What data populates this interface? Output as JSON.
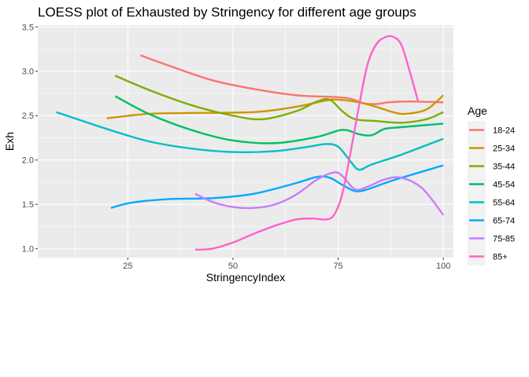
{
  "chart_data": {
    "type": "line",
    "title": "LOESS plot of Exhausted by Stringency for different age groups",
    "xlabel": "StringencyIndex",
    "ylabel": "Exh",
    "xlim": [
      3.6,
      102.4
    ],
    "ylim": [
      0.9,
      3.52
    ],
    "x_ticks": [
      25,
      50,
      75,
      100
    ],
    "y_ticks": [
      1.0,
      1.5,
      2.0,
      2.5,
      3.0,
      3.5
    ],
    "x_tick_labels": [
      "25",
      "50",
      "75",
      "100"
    ],
    "y_tick_labels": [
      "1.0",
      "1.5",
      "2.0",
      "2.5",
      "3.0",
      "3.5"
    ],
    "grid": true,
    "panel_background": "#EBEBEB",
    "legend": {
      "title": "Age",
      "position": "right"
    },
    "series": [
      {
        "name": "18-24",
        "color": "#F8766D",
        "points": [
          [
            28,
            3.18
          ],
          [
            35,
            3.06
          ],
          [
            45,
            2.9
          ],
          [
            55,
            2.8
          ],
          [
            65,
            2.73
          ],
          [
            74,
            2.71
          ],
          [
            78,
            2.69
          ],
          [
            81,
            2.64
          ],
          [
            84,
            2.63
          ],
          [
            87,
            2.65
          ],
          [
            92,
            2.66
          ],
          [
            100,
            2.65
          ]
        ]
      },
      {
        "name": "25-34",
        "color": "#CD9600",
        "points": [
          [
            20,
            2.47
          ],
          [
            30,
            2.52
          ],
          [
            40,
            2.53
          ],
          [
            55,
            2.54
          ],
          [
            65,
            2.6
          ],
          [
            72,
            2.67
          ],
          [
            75,
            2.68
          ],
          [
            80,
            2.65
          ],
          [
            84,
            2.6
          ],
          [
            88,
            2.54
          ],
          [
            91,
            2.52
          ],
          [
            96,
            2.57
          ],
          [
            100,
            2.73
          ]
        ]
      },
      {
        "name": "35-44",
        "color": "#7CAE00",
        "points": [
          [
            22,
            2.95
          ],
          [
            30,
            2.79
          ],
          [
            40,
            2.62
          ],
          [
            50,
            2.5
          ],
          [
            57,
            2.46
          ],
          [
            65,
            2.55
          ],
          [
            70,
            2.66
          ],
          [
            73,
            2.68
          ],
          [
            76,
            2.55
          ],
          [
            79,
            2.46
          ],
          [
            84,
            2.44
          ],
          [
            90,
            2.42
          ],
          [
            96,
            2.46
          ],
          [
            100,
            2.54
          ]
        ]
      },
      {
        "name": "45-54",
        "color": "#00BE67",
        "points": [
          [
            22,
            2.72
          ],
          [
            30,
            2.52
          ],
          [
            40,
            2.34
          ],
          [
            50,
            2.22
          ],
          [
            60,
            2.19
          ],
          [
            70,
            2.26
          ],
          [
            76,
            2.34
          ],
          [
            80,
            2.29
          ],
          [
            83,
            2.28
          ],
          [
            86,
            2.35
          ],
          [
            90,
            2.37
          ],
          [
            100,
            2.41
          ]
        ]
      },
      {
        "name": "55-64",
        "color": "#00BFC4",
        "points": [
          [
            8,
            2.54
          ],
          [
            20,
            2.35
          ],
          [
            30,
            2.21
          ],
          [
            40,
            2.13
          ],
          [
            50,
            2.09
          ],
          [
            60,
            2.1
          ],
          [
            68,
            2.15
          ],
          [
            72,
            2.18
          ],
          [
            75,
            2.15
          ],
          [
            78,
            1.98
          ],
          [
            80,
            1.89
          ],
          [
            83,
            1.95
          ],
          [
            90,
            2.06
          ],
          [
            100,
            2.24
          ]
        ]
      },
      {
        "name": "65-74",
        "color": "#00A9FF",
        "points": [
          [
            21,
            1.46
          ],
          [
            26,
            1.52
          ],
          [
            35,
            1.56
          ],
          [
            45,
            1.57
          ],
          [
            55,
            1.62
          ],
          [
            65,
            1.74
          ],
          [
            70,
            1.81
          ],
          [
            73,
            1.8
          ],
          [
            76,
            1.72
          ],
          [
            79,
            1.65
          ],
          [
            82,
            1.67
          ],
          [
            88,
            1.77
          ],
          [
            100,
            1.94
          ]
        ]
      },
      {
        "name": "75-85",
        "color": "#C77CFF",
        "points": [
          [
            41,
            1.62
          ],
          [
            45,
            1.53
          ],
          [
            50,
            1.47
          ],
          [
            55,
            1.46
          ],
          [
            60,
            1.5
          ],
          [
            65,
            1.61
          ],
          [
            70,
            1.78
          ],
          [
            74,
            1.86
          ],
          [
            76,
            1.82
          ],
          [
            79,
            1.67
          ],
          [
            82,
            1.7
          ],
          [
            86,
            1.78
          ],
          [
            90,
            1.8
          ],
          [
            95,
            1.68
          ],
          [
            100,
            1.38
          ]
        ]
      },
      {
        "name": "85+",
        "color": "#FF61CC",
        "points": [
          [
            41,
            0.99
          ],
          [
            45,
            1.0
          ],
          [
            50,
            1.07
          ],
          [
            55,
            1.17
          ],
          [
            60,
            1.26
          ],
          [
            65,
            1.33
          ],
          [
            69,
            1.34
          ],
          [
            72,
            1.33
          ],
          [
            74,
            1.38
          ],
          [
            76,
            1.62
          ],
          [
            78,
            2.1
          ],
          [
            80,
            2.62
          ],
          [
            82,
            3.08
          ],
          [
            84,
            3.3
          ],
          [
            86,
            3.38
          ],
          [
            88,
            3.39
          ],
          [
            90,
            3.3
          ],
          [
            92,
            3.0
          ],
          [
            94,
            2.66
          ]
        ]
      }
    ]
  }
}
